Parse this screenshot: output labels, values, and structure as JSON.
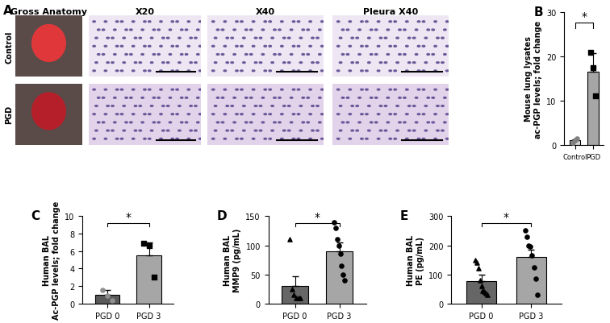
{
  "image_panel": {
    "label": "A",
    "columns": [
      "Gross Anatomy",
      "X20",
      "X40",
      "Pleura X40"
    ],
    "rows": [
      "Control",
      "PGD"
    ]
  },
  "chart_data": [
    {
      "type": "bar",
      "label": "B",
      "y_label": "Mouse lung lysates\nac-PGP levels; fold change",
      "categories": [
        "Control",
        "PGD"
      ],
      "values": [
        1.0,
        16.5
      ],
      "errors": [
        0.3,
        4.3
      ],
      "colors": [
        "#d9d9d9",
        "#a6a6a6"
      ],
      "points": [
        {
          "values": [
            0.6,
            1.0,
            1.4
          ],
          "marker": "circle",
          "color": "#808080"
        },
        {
          "values": [
            21,
            17.5,
            11
          ],
          "marker": "square",
          "color": "#000000"
        }
      ],
      "ylim": [
        0,
        30
      ],
      "yticks": [
        0,
        10,
        20,
        30
      ],
      "annotation": "*"
    },
    {
      "type": "bar",
      "label": "C",
      "y_label": "Human BAL\nAc-PGP levels; fold change",
      "categories": [
        "PGD 0",
        "PGD 3"
      ],
      "values": [
        1.0,
        5.5
      ],
      "errors": [
        0.6,
        1.5
      ],
      "colors": [
        "#595959",
        "#a6a6a6"
      ],
      "points": [
        {
          "values": [
            1.6,
            0.9,
            0.4
          ],
          "marker": "circle",
          "color": "#909090"
        },
        {
          "values": [
            6.9,
            6.6,
            3.0
          ],
          "marker": "square",
          "color": "#000000"
        }
      ],
      "ylim": [
        0,
        10
      ],
      "yticks": [
        0,
        2,
        4,
        6,
        8,
        10
      ],
      "annotation": "*"
    },
    {
      "type": "bar",
      "label": "D",
      "y_label": "Human BAL\nMMP9 (pg/mL)",
      "categories": [
        "PGD 0",
        "PGD 3"
      ],
      "values": [
        30,
        90
      ],
      "errors": [
        17,
        15
      ],
      "colors": [
        "#666666",
        "#a6a6a6"
      ],
      "points": [
        {
          "values": [
            110,
            25,
            15,
            10,
            10,
            10
          ],
          "marker": "triangle",
          "color": "#000000"
        },
        {
          "values": [
            140,
            130,
            110,
            100,
            85,
            65,
            50,
            40
          ],
          "marker": "circle",
          "color": "#000000"
        }
      ],
      "ylim": [
        0,
        150
      ],
      "yticks": [
        0,
        50,
        100,
        150
      ],
      "annotation": "*"
    },
    {
      "type": "bar",
      "label": "E",
      "y_label": "Human BAL\nPE (pg/mL)",
      "categories": [
        "PGD 0",
        "PGD 3"
      ],
      "values": [
        78,
        160
      ],
      "errors": [
        22,
        25
      ],
      "colors": [
        "#666666",
        "#a6a6a6"
      ],
      "points": [
        {
          "values": [
            150,
            140,
            120,
            80,
            60,
            45,
            40,
            35,
            30
          ],
          "marker": "triangle",
          "color": "#000000"
        },
        {
          "values": [
            250,
            230,
            200,
            195,
            165,
            125,
            85,
            30
          ],
          "marker": "circle",
          "color": "#000000"
        }
      ],
      "ylim": [
        0,
        300
      ],
      "yticks": [
        0,
        100,
        200,
        300
      ],
      "annotation": "*"
    }
  ]
}
